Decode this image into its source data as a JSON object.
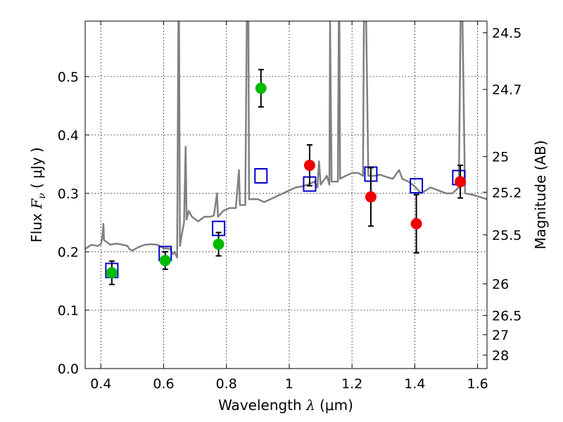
{
  "chart_data": {
    "type": "scatter",
    "xlabel": {
      "prefix": "Wavelength ",
      "symbol": "λ",
      "units": " (μm)"
    },
    "ylabel": {
      "prefix": "Flux ",
      "symbol": "F",
      "subscript": "ν",
      "units": " ( μJy )"
    },
    "ylabel_right": "Magnitude (AB)",
    "xlim": [
      0.35,
      1.63
    ],
    "ylim": [
      0.0,
      0.595
    ],
    "x_ticks": [
      0.4,
      0.6,
      0.8,
      1.0,
      1.2,
      1.4,
      1.6
    ],
    "x_tick_labels": [
      "0.4",
      "0.6",
      "0.8",
      "1",
      "1.2",
      "1.4",
      "1.6"
    ],
    "y_ticks": [
      0.0,
      0.1,
      0.2,
      0.3,
      0.4,
      0.5
    ],
    "y_tick_labels": [
      "0.0",
      "0.1",
      "0.2",
      "0.3",
      "0.4",
      "0.5"
    ],
    "magnitude_ticks": [
      {
        "mag": "24.5",
        "flux": 0.575
      },
      {
        "mag": "24.7",
        "flux": 0.478
      },
      {
        "mag": "25",
        "flux": 0.363
      },
      {
        "mag": "25.2",
        "flux": 0.302
      },
      {
        "mag": "25.5",
        "flux": 0.229
      },
      {
        "mag": "26",
        "flux": 0.145
      },
      {
        "mag": "26.5",
        "flux": 0.091
      },
      {
        "mag": "27",
        "flux": 0.058
      },
      {
        "mag": "28",
        "flux": 0.023
      }
    ],
    "grid": true,
    "series": [
      {
        "kind": "model-spectrum",
        "style": "line",
        "color": "#808080",
        "points": [
          [
            0.35,
            0.205
          ],
          [
            0.37,
            0.212
          ],
          [
            0.39,
            0.21
          ],
          [
            0.4,
            0.213
          ],
          [
            0.405,
            0.225
          ],
          [
            0.408,
            0.248
          ],
          [
            0.41,
            0.22
          ],
          [
            0.43,
            0.212
          ],
          [
            0.45,
            0.214
          ],
          [
            0.47,
            0.212
          ],
          [
            0.485,
            0.21
          ],
          [
            0.49,
            0.205
          ],
          [
            0.5,
            0.202
          ],
          [
            0.52,
            0.208
          ],
          [
            0.54,
            0.212
          ],
          [
            0.56,
            0.213
          ],
          [
            0.58,
            0.212
          ],
          [
            0.6,
            0.206
          ],
          [
            0.62,
            0.205
          ],
          [
            0.63,
            0.196
          ],
          [
            0.635,
            0.2
          ],
          [
            0.643,
            0.19
          ],
          [
            0.647,
            0.595
          ],
          [
            0.649,
            0.595
          ],
          [
            0.652,
            0.21
          ],
          [
            0.658,
            0.23
          ],
          [
            0.665,
            0.25
          ],
          [
            0.67,
            0.38
          ],
          [
            0.673,
            0.255
          ],
          [
            0.68,
            0.27
          ],
          [
            0.69,
            0.26
          ],
          [
            0.71,
            0.252
          ],
          [
            0.73,
            0.26
          ],
          [
            0.75,
            0.26
          ],
          [
            0.76,
            0.262
          ],
          [
            0.77,
            0.3
          ],
          [
            0.773,
            0.26
          ],
          [
            0.79,
            0.27
          ],
          [
            0.81,
            0.275
          ],
          [
            0.83,
            0.275
          ],
          [
            0.84,
            0.34
          ],
          [
            0.843,
            0.28
          ],
          [
            0.86,
            0.28
          ],
          [
            0.865,
            0.595
          ],
          [
            0.87,
            0.595
          ],
          [
            0.872,
            0.29
          ],
          [
            0.9,
            0.29
          ],
          [
            0.92,
            0.285
          ],
          [
            0.96,
            0.295
          ],
          [
            0.98,
            0.3
          ],
          [
            1.0,
            0.305
          ],
          [
            1.02,
            0.31
          ],
          [
            1.04,
            0.312
          ],
          [
            1.06,
            0.315
          ],
          [
            1.08,
            0.32
          ],
          [
            1.09,
            0.31
          ],
          [
            1.095,
            0.355
          ],
          [
            1.1,
            0.315
          ],
          [
            1.12,
            0.33
          ],
          [
            1.128,
            0.315
          ],
          [
            1.13,
            0.595
          ],
          [
            1.135,
            0.32
          ],
          [
            1.155,
            0.32
          ],
          [
            1.158,
            0.595
          ],
          [
            1.16,
            0.595
          ],
          [
            1.162,
            0.325
          ],
          [
            1.18,
            0.33
          ],
          [
            1.2,
            0.335
          ],
          [
            1.22,
            0.335
          ],
          [
            1.235,
            0.33
          ],
          [
            1.238,
            0.595
          ],
          [
            1.245,
            0.595
          ],
          [
            1.252,
            0.33
          ],
          [
            1.27,
            0.33
          ],
          [
            1.29,
            0.332
          ],
          [
            1.31,
            0.328
          ],
          [
            1.33,
            0.325
          ],
          [
            1.35,
            0.34
          ],
          [
            1.36,
            0.325
          ],
          [
            1.38,
            0.32
          ],
          [
            1.4,
            0.312
          ],
          [
            1.42,
            0.3
          ],
          [
            1.45,
            0.31
          ],
          [
            1.5,
            0.3
          ],
          [
            1.52,
            0.3
          ],
          [
            1.54,
            0.31
          ],
          [
            1.546,
            0.595
          ],
          [
            1.552,
            0.595
          ],
          [
            1.56,
            0.3
          ],
          [
            1.58,
            0.298
          ],
          [
            1.6,
            0.295
          ],
          [
            1.63,
            0.29
          ]
        ]
      },
      {
        "kind": "model-photometry",
        "marker": "open-square",
        "color": "#0000cc",
        "x": [
          0.435,
          0.605,
          0.775,
          0.91,
          1.065,
          1.26,
          1.405,
          1.54
        ],
        "y": [
          0.168,
          0.197,
          0.24,
          0.33,
          0.316,
          0.333,
          0.313,
          0.327
        ]
      },
      {
        "kind": "observed-detection",
        "marker": "filled-circle",
        "color": "#00bb00",
        "x": [
          0.435,
          0.605,
          0.775,
          0.91
        ],
        "y": [
          0.164,
          0.185,
          0.213,
          0.48
        ],
        "err": [
          0.02,
          0.015,
          0.02,
          0.032
        ]
      },
      {
        "kind": "observed-measurement",
        "marker": "filled-circle",
        "color": "#ee0000",
        "x": [
          1.065,
          1.26,
          1.405,
          1.545
        ],
        "y": [
          0.348,
          0.294,
          0.248,
          0.32
        ],
        "err": [
          0.035,
          0.05,
          0.05,
          0.028
        ]
      }
    ]
  }
}
